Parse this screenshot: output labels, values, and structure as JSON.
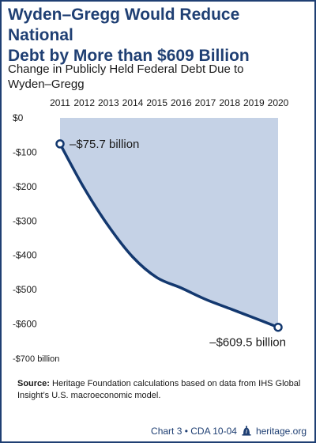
{
  "title_line1": "Wyden–Gregg Would Reduce National",
  "title_line2": "Debt by More than $609 Billion",
  "subtitle_line1": "Change in Publicly Held Federal Debt Due to",
  "subtitle_line2": "Wyden–Gregg",
  "source_label": "Source:",
  "source_text": "Heritage Foundation calculations based on data from IHS Global Insight’s U.S. macroeconomic model.",
  "footer": {
    "chart_ref": "Chart 3 • CDA 10-04",
    "site": "heritage.org"
  },
  "colors": {
    "brand": "#1f3f73",
    "line": "#13386f",
    "fill": "#c5d2e6"
  },
  "chart_data": {
    "type": "area",
    "x": [
      2011,
      2012,
      2013,
      2014,
      2015,
      2016,
      2017,
      2018,
      2019,
      2020
    ],
    "values": [
      -75.7,
      -205,
      -315,
      -405,
      -465,
      -495,
      -528,
      -555,
      -582,
      -609.5
    ],
    "x_tick_labels": [
      "2011",
      "2012",
      "2013",
      "2014",
      "2015",
      "2016",
      "2017",
      "2018",
      "2019",
      "2020"
    ],
    "y_tick_labels": [
      "$0",
      "-$100",
      "-$200",
      "-$300",
      "-$400",
      "-$500",
      "-$600",
      "-$700 billion"
    ],
    "y_ticks": [
      0,
      -100,
      -200,
      -300,
      -400,
      -500,
      -600,
      -700
    ],
    "ylim": [
      -700,
      0
    ],
    "annotations": [
      {
        "x": 2011,
        "y": -75.7,
        "text": "–$75.7 billion"
      },
      {
        "x": 2020,
        "y": -609.5,
        "text": "–$609.5 billion"
      }
    ],
    "grid": false,
    "x_axis_position": "top"
  }
}
